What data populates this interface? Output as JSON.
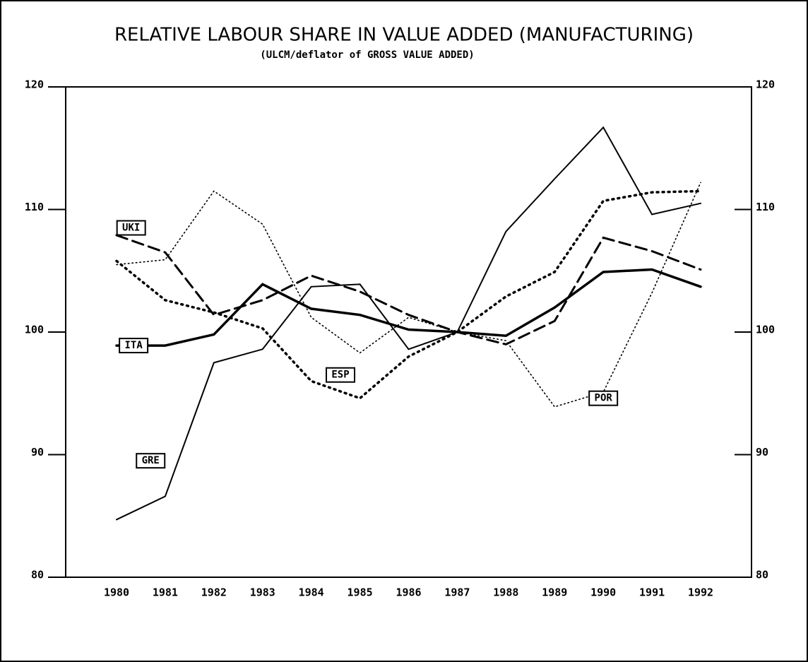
{
  "chart_data": {
    "type": "line",
    "title": "RELATIVE LABOUR SHARE IN VALUE ADDED (MANUFACTURING)",
    "subtitle": "(ULCM/deflator of GROSS VALUE ADDED)",
    "categories": [
      "1980",
      "1981",
      "1982",
      "1983",
      "1984",
      "1985",
      "1986",
      "1987",
      "1988",
      "1989",
      "1990",
      "1991",
      "1992"
    ],
    "series": [
      {
        "name": "UKI",
        "color": "#000000",
        "values": [
          107.9,
          106.5,
          101.4,
          102.6,
          104.6,
          103.3,
          101.4,
          100,
          99.0,
          100.9,
          107.7,
          106.6,
          105.1
        ]
      },
      {
        "name": "ITA",
        "color": "#000000",
        "values": [
          98.9,
          98.9,
          99.8,
          103.9,
          101.9,
          101.4,
          100.2,
          100,
          99.7,
          102.0,
          104.9,
          105.1,
          103.7
        ]
      },
      {
        "name": "ESP",
        "color": "#000000",
        "values": [
          105.8,
          102.6,
          101.6,
          100.3,
          96.0,
          94.6,
          98.0,
          100,
          102.9,
          104.9,
          110.7,
          111.4,
          111.5
        ]
      },
      {
        "name": "GRE",
        "color": "#000000",
        "values": [
          84.7,
          86.6,
          97.5,
          98.6,
          103.7,
          103.9,
          98.6,
          100,
          108.2,
          112.5,
          116.7,
          109.6,
          110.5
        ]
      },
      {
        "name": "POR",
        "color": "#000000",
        "values": [
          105.5,
          105.9,
          111.5,
          108.8,
          101.2,
          98.3,
          101.2,
          100,
          99.3,
          93.9,
          95.1,
          103.2,
          112.2
        ]
      }
    ],
    "ylim": [
      80,
      120
    ],
    "yticks": [
      80,
      90,
      100,
      110,
      120
    ],
    "y2lim": [
      80,
      120
    ],
    "y2ticks": [
      80,
      90,
      100,
      110,
      120
    ]
  }
}
